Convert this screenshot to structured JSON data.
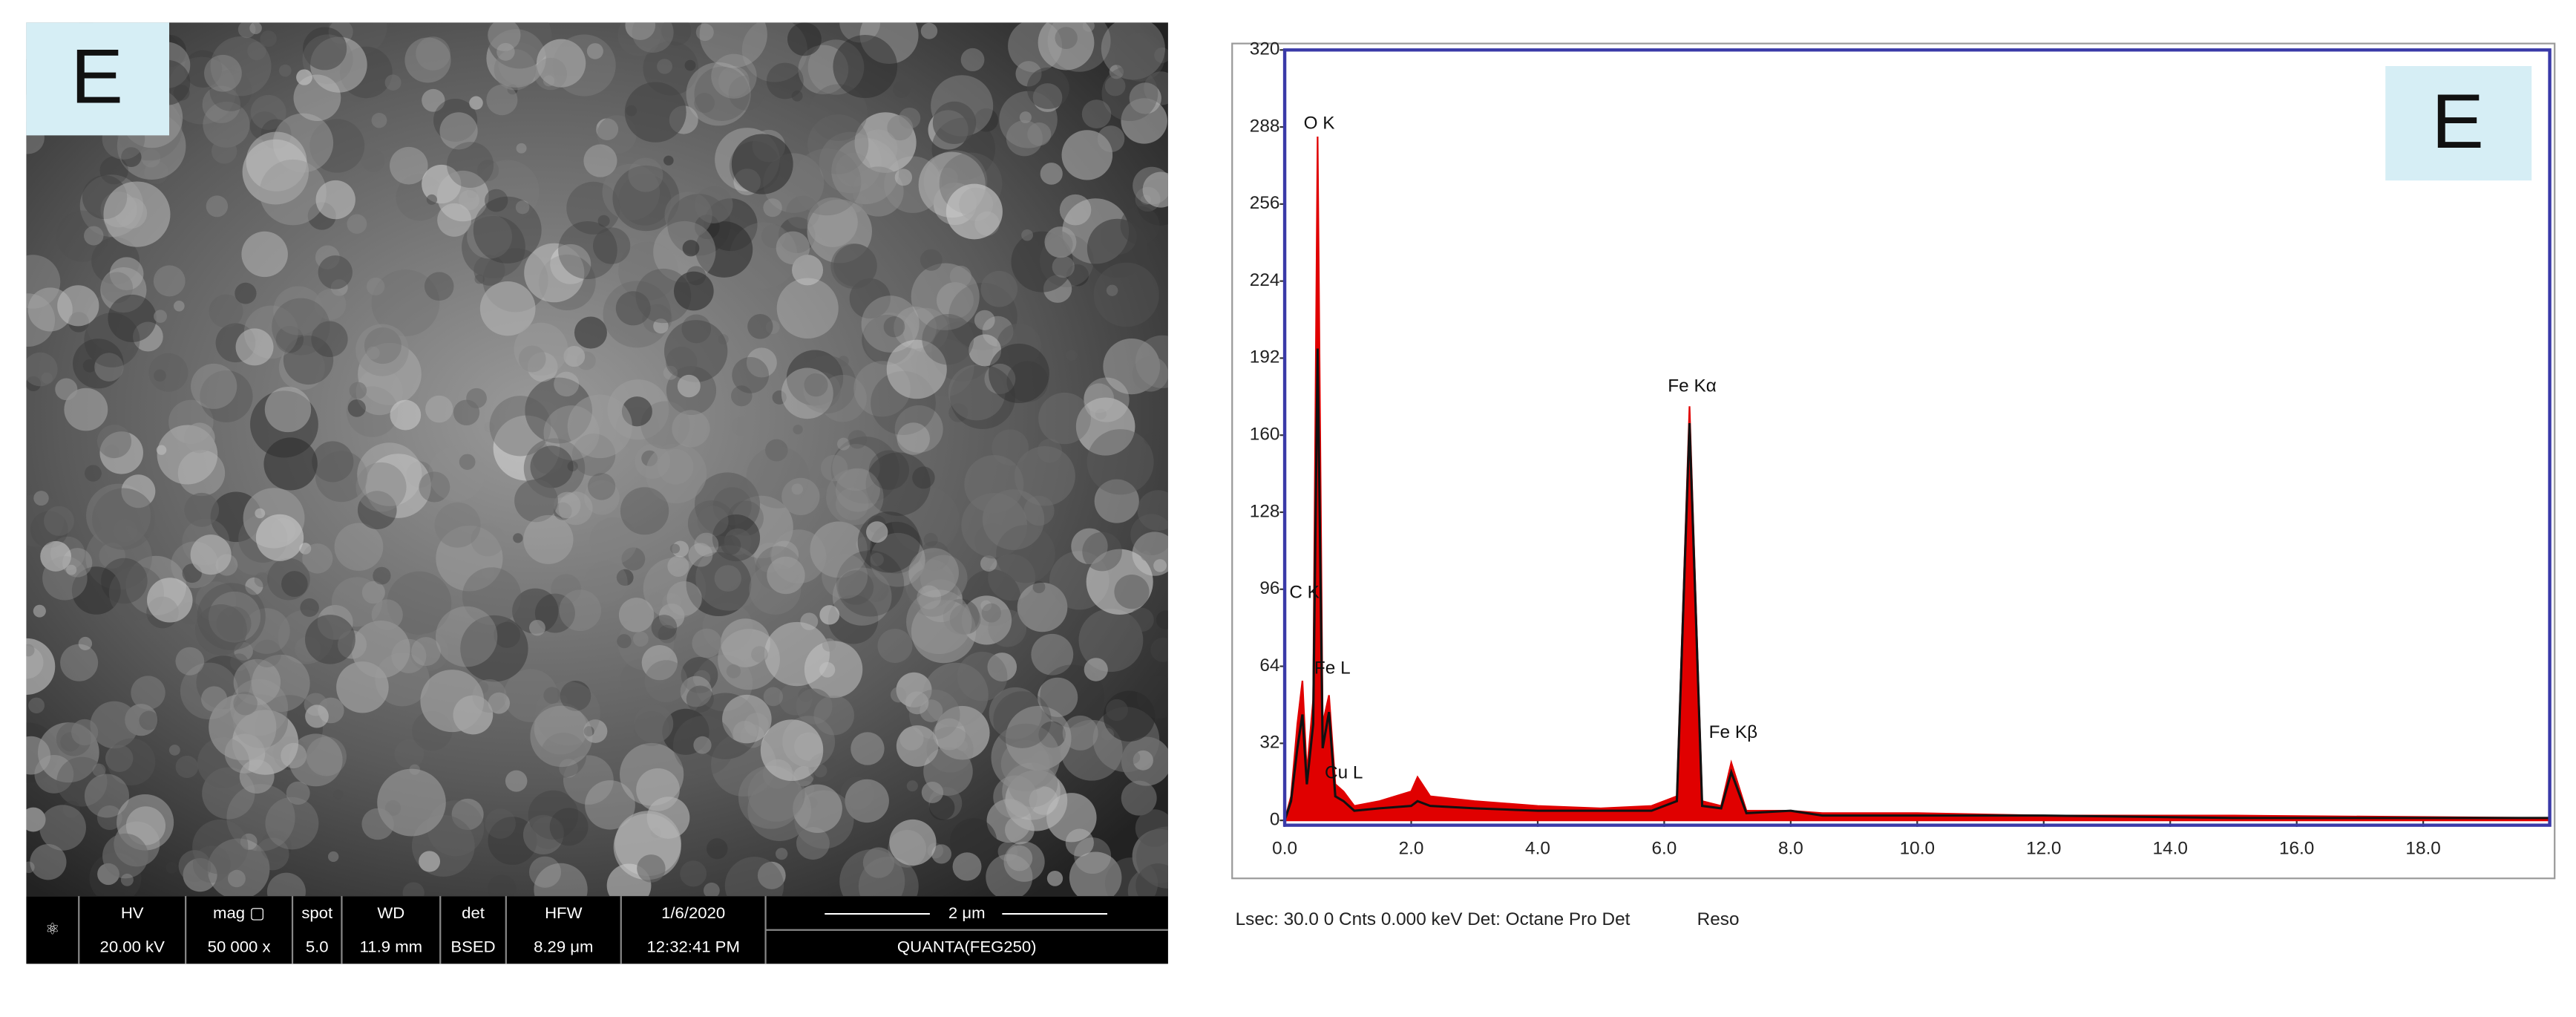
{
  "sem": {
    "panel_label": "E",
    "info_bar": {
      "headers": [
        "HV",
        "mag ▢",
        "spot",
        "WD",
        "det",
        "HFW",
        "1/6/2020",
        "2 μm"
      ],
      "values": [
        "20.00 kV",
        "50 000 x",
        "5.0",
        "11.9 mm",
        "BSED",
        "8.29 μm",
        "12:32:41 PM",
        "QUANTA(FEG250)"
      ]
    }
  },
  "chart_data": {
    "type": "line",
    "panel_label": "E",
    "x": [
      0,
      0.1,
      0.2,
      0.28,
      0.35,
      0.45,
      0.52,
      0.6,
      0.7,
      0.8,
      0.93,
      1.1,
      1.5,
      2.0,
      2.1,
      2.3,
      3,
      4,
      5,
      5.8,
      6.2,
      6.4,
      6.6,
      6.9,
      7.06,
      7.3,
      8.0,
      8.5,
      10,
      12,
      15,
      20
    ],
    "series": [
      {
        "color": "#e00000",
        "fill": true,
        "values": [
          0,
          10,
          40,
          58,
          20,
          50,
          284,
          40,
          52,
          15,
          12,
          6,
          8,
          12,
          18,
          10,
          8,
          6,
          5,
          6,
          10,
          172,
          8,
          6,
          24,
          4,
          4,
          3,
          3,
          2,
          2,
          1
        ]
      },
      {
        "color": "#111111",
        "fill": false,
        "values": [
          0,
          8,
          30,
          44,
          15,
          40,
          196,
          30,
          45,
          10,
          8,
          4,
          5,
          6,
          8,
          6,
          5,
          4,
          4,
          4,
          8,
          165,
          6,
          5,
          20,
          3,
          4,
          2,
          2,
          2,
          1,
          1
        ]
      }
    ],
    "annotations": [
      "O K",
      "C K",
      "Fe L",
      "Cu L",
      "Fe Kα",
      "Fe Kβ"
    ],
    "xlim": [
      0,
      20
    ],
    "ylim": [
      0,
      320
    ],
    "xticks": [
      {
        "value": 0,
        "label": "0.0"
      },
      {
        "value": 2,
        "label": "2.0"
      },
      {
        "value": 4,
        "label": "4.0"
      },
      {
        "value": 6,
        "label": "6.0"
      },
      {
        "value": 8,
        "label": "8.0"
      },
      {
        "value": 10,
        "label": "10.0"
      },
      {
        "value": 12,
        "label": "12.0"
      },
      {
        "value": 14,
        "label": "14.0"
      },
      {
        "value": 16,
        "label": "16.0"
      },
      {
        "value": 18,
        "label": "18.0"
      }
    ],
    "yticks": [
      0,
      32,
      64,
      96,
      128,
      160,
      192,
      224,
      256,
      288,
      320
    ],
    "footer": [
      "Lsec: 30.0 0 Cnts 0.000 keV Det: Octane Pro Det",
      "Reso"
    ]
  }
}
